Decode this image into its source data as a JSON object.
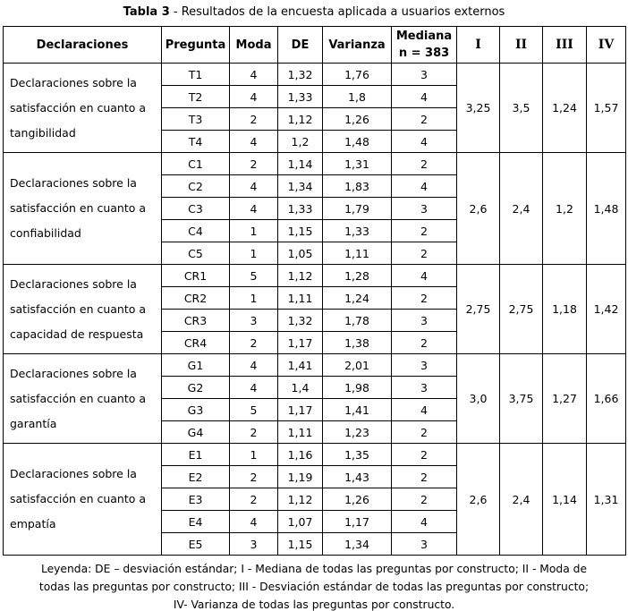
{
  "title": {
    "bold": "Tabla 3",
    "rest": " - Resultados de la encuesta aplicada a usuarios externos"
  },
  "colors": {
    "background": "#ffffff",
    "text": "#000000",
    "border": "#000000"
  },
  "table": {
    "headers": {
      "declaraciones": "Declaraciones",
      "pregunta": "Pregunta",
      "moda": "Moda",
      "de": "DE",
      "varianza": "Varianza",
      "mediana_line1": "Mediana",
      "mediana_line2": "n = 383",
      "roman": [
        "I",
        "II",
        "III",
        "IV"
      ]
    },
    "groups": [
      {
        "declaracion_lines": [
          "Declaraciones sobre la",
          "satisfacción en cuanto a",
          "tangibilidad"
        ],
        "rows": [
          {
            "pregunta": "T1",
            "moda": "4",
            "de": "1,32",
            "varianza": "1,76",
            "mediana": "3"
          },
          {
            "pregunta": "T2",
            "moda": "4",
            "de": "1,33",
            "varianza": "1,8",
            "mediana": "4"
          },
          {
            "pregunta": "T3",
            "moda": "2",
            "de": "1,12",
            "varianza": "1,26",
            "mediana": "2"
          },
          {
            "pregunta": "T4",
            "moda": "4",
            "de": "1,2",
            "varianza": "1,48",
            "mediana": "4"
          }
        ],
        "summary": {
          "I": "3,25",
          "II": "3,5",
          "III": "1,24",
          "IV": "1,57"
        }
      },
      {
        "declaracion_lines": [
          "Declaraciones sobre la",
          "satisfacción en cuanto a",
          "confiabilidad"
        ],
        "rows": [
          {
            "pregunta": "C1",
            "moda": "2",
            "de": "1,14",
            "varianza": "1,31",
            "mediana": "2"
          },
          {
            "pregunta": "C2",
            "moda": "4",
            "de": "1,34",
            "varianza": "1,83",
            "mediana": "4"
          },
          {
            "pregunta": "C3",
            "moda": "4",
            "de": "1,33",
            "varianza": "1,79",
            "mediana": "3"
          },
          {
            "pregunta": "C4",
            "moda": "1",
            "de": "1,15",
            "varianza": "1,33",
            "mediana": "2"
          },
          {
            "pregunta": "C5",
            "moda": "1",
            "de": "1,05",
            "varianza": "1,11",
            "mediana": "2"
          }
        ],
        "summary": {
          "I": "2,6",
          "II": "2,4",
          "III": "1,2",
          "IV": "1,48"
        }
      },
      {
        "declaracion_lines": [
          "Declaraciones sobre la",
          "satisfacción en cuanto a",
          "capacidad de respuesta"
        ],
        "rows": [
          {
            "pregunta": "CR1",
            "moda": "5",
            "de": "1,12",
            "varianza": "1,28",
            "mediana": "4"
          },
          {
            "pregunta": "CR2",
            "moda": "1",
            "de": "1,11",
            "varianza": "1,24",
            "mediana": "2"
          },
          {
            "pregunta": "CR3",
            "moda": "3",
            "de": "1,32",
            "varianza": "1,78",
            "mediana": "3"
          },
          {
            "pregunta": "CR4",
            "moda": "2",
            "de": "1,17",
            "varianza": "1,38",
            "mediana": "2"
          }
        ],
        "summary": {
          "I": "2,75",
          "II": "2,75",
          "III": "1,18",
          "IV": "1,42"
        }
      },
      {
        "declaracion_lines": [
          "Declaraciones sobre la",
          "satisfacción en cuanto a",
          "garantía"
        ],
        "rows": [
          {
            "pregunta": "G1",
            "moda": "4",
            "de": "1,41",
            "varianza": "2,01",
            "mediana": "3"
          },
          {
            "pregunta": "G2",
            "moda": "4",
            "de": "1,4",
            "varianza": "1,98",
            "mediana": "3"
          },
          {
            "pregunta": "G3",
            "moda": "5",
            "de": "1,17",
            "varianza": "1,41",
            "mediana": "4"
          },
          {
            "pregunta": "G4",
            "moda": "2",
            "de": "1,11",
            "varianza": "1,23",
            "mediana": "2"
          }
        ],
        "summary": {
          "I": "3,0",
          "II": "3,75",
          "III": "1,27",
          "IV": "1,66"
        }
      },
      {
        "declaracion_lines": [
          "Declaraciones sobre la",
          "satisfacción en cuanto a",
          "empatía"
        ],
        "rows": [
          {
            "pregunta": "E1",
            "moda": "1",
            "de": "1,16",
            "varianza": "1,35",
            "mediana": "2"
          },
          {
            "pregunta": "E2",
            "moda": "2",
            "de": "1,19",
            "varianza": "1,43",
            "mediana": "2"
          },
          {
            "pregunta": "E3",
            "moda": "2",
            "de": "1,12",
            "varianza": "1,26",
            "mediana": "2"
          },
          {
            "pregunta": "E4",
            "moda": "4",
            "de": "1,07",
            "varianza": "1,17",
            "mediana": "4"
          },
          {
            "pregunta": "E5",
            "moda": "3",
            "de": "1,15",
            "varianza": "1,34",
            "mediana": "3"
          }
        ],
        "summary": {
          "I": "2,6",
          "II": "2,4",
          "III": "1,14",
          "IV": "1,31"
        }
      }
    ]
  },
  "legend": {
    "lines": [
      "Leyenda: DE – desviación estándar; I - Mediana de todas las preguntas por constructo; II - Moda de",
      "todas las preguntas por constructo; III - Desviación estándar de todas las preguntas por constructo;",
      "IV- Varianza de todas las preguntas por constructo."
    ]
  }
}
